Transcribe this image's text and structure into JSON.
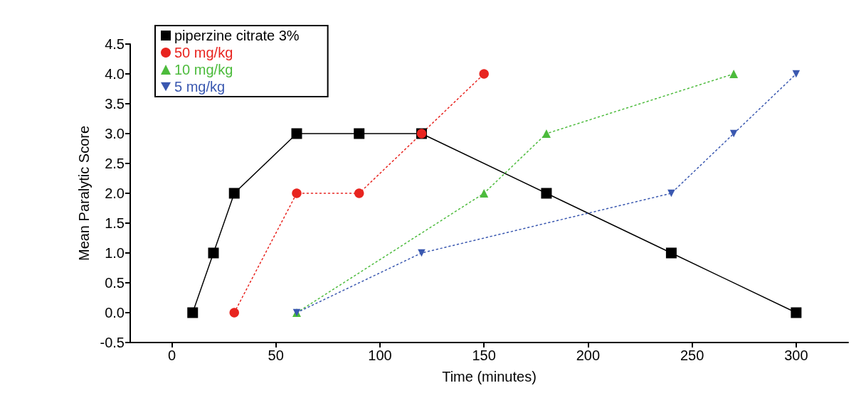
{
  "chart_data": {
    "type": "line",
    "xlabel": "Time (minutes)",
    "ylabel": "Mean Paralytic Score",
    "xlim": [
      -20,
      325
    ],
    "xticks": [
      0,
      50,
      100,
      150,
      200,
      250,
      300
    ],
    "ylim": [
      -0.5,
      4.5
    ],
    "yticks": [
      {
        "value": -0.5,
        "label": "-0.5"
      },
      {
        "value": 0,
        "label": "0.0"
      },
      {
        "value": 0.5,
        "label": "0.5"
      },
      {
        "value": 1,
        "label": "1.0"
      },
      {
        "value": 1.5,
        "label": "1.5"
      },
      {
        "value": 2,
        "label": "2.0"
      },
      {
        "value": 2.5,
        "label": "2.5"
      },
      {
        "value": 3,
        "label": "3.0"
      },
      {
        "value": 3.5,
        "label": "3.5"
      },
      {
        "value": 4,
        "label": "4.0"
      },
      {
        "value": 4.5,
        "label": "4.5"
      }
    ],
    "grid": false,
    "legend": "top left",
    "series": [
      {
        "name": "piperzine citrate 3%",
        "color": "#000000",
        "marker": "square",
        "line_style": "solid",
        "x": [
          10,
          20,
          30,
          60,
          90,
          120,
          180,
          240,
          300
        ],
        "values": [
          0,
          1,
          2,
          3,
          3,
          3,
          2,
          1,
          0
        ]
      },
      {
        "name": "50 mg/kg",
        "color": "#e8241f",
        "marker": "circle",
        "line_style": "dotted",
        "x": [
          30,
          60,
          90,
          120,
          150
        ],
        "values": [
          0,
          2,
          2,
          3,
          4
        ]
      },
      {
        "name": "10 mg/kg",
        "color": "#4cbb3c",
        "marker": "triangle",
        "line_style": "dotted",
        "x": [
          60,
          150,
          180,
          270
        ],
        "values": [
          0,
          2,
          3,
          4
        ]
      },
      {
        "name": "5 mg/kg",
        "color": "#3a58b0",
        "marker": "triangle-down",
        "line_style": "dotted",
        "x": [
          60,
          120,
          240,
          270,
          300
        ],
        "values": [
          0,
          1,
          2,
          3,
          4
        ]
      }
    ]
  }
}
